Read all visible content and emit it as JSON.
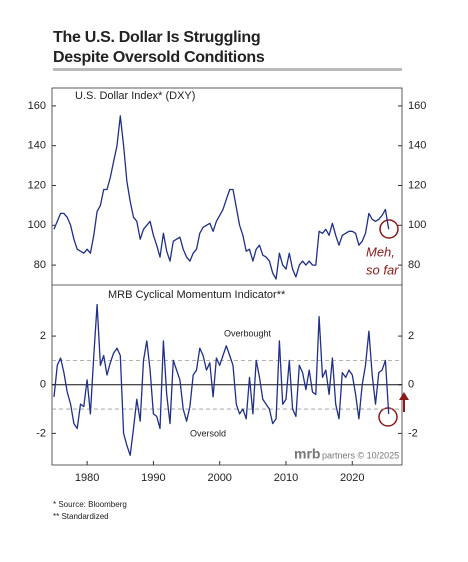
{
  "title": [
    "The U.S. Dollar Is Struggling",
    "Despite Oversold Conditions"
  ],
  "footnotes": [
    "*  Source: Bloomberg",
    "** Standardized"
  ],
  "logo": "mrb",
  "credit": "partners © 10/2025",
  "chart_data": [
    {
      "type": "line",
      "title": "U.S. Dollar Index* (DXY)",
      "color": "#1f2f8a",
      "xlim": [
        1974.7,
        2027.5
      ],
      "ylim": [
        70,
        169
      ],
      "yticks": [
        80,
        100,
        120,
        140,
        160
      ],
      "annotations": [
        "Meh,",
        "so far"
      ],
      "x": [
        1975,
        1975.5,
        1976,
        1976.5,
        1977,
        1977.5,
        1978,
        1978.5,
        1979,
        1979.5,
        1980,
        1980.5,
        1981,
        1981.5,
        1982,
        1982.5,
        1983,
        1983.5,
        1984,
        1984.5,
        1985,
        1985.5,
        1986,
        1986.5,
        1987,
        1987.5,
        1988,
        1988.5,
        1989,
        1989.5,
        1990,
        1990.5,
        1991,
        1991.5,
        1992,
        1992.5,
        1993,
        1993.5,
        1994,
        1994.5,
        1995,
        1995.5,
        1996,
        1996.5,
        1997,
        1997.5,
        1998,
        1998.5,
        1999,
        1999.5,
        2000,
        2000.5,
        2001,
        2001.5,
        2002,
        2002.5,
        2003,
        2003.5,
        2004,
        2004.5,
        2005,
        2005.5,
        2006,
        2006.5,
        2007,
        2007.5,
        2008,
        2008.5,
        2009,
        2009.5,
        2010,
        2010.5,
        2011,
        2011.5,
        2012,
        2012.5,
        2013,
        2013.5,
        2014,
        2014.5,
        2015,
        2015.5,
        2016,
        2016.5,
        2017,
        2017.5,
        2018,
        2018.5,
        2019,
        2019.5,
        2020,
        2020.5,
        2021,
        2021.5,
        2022,
        2022.5,
        2023,
        2023.5,
        2024,
        2024.5,
        2025,
        2025.5
      ],
      "values": [
        98,
        102,
        106,
        106,
        104,
        100,
        93,
        88,
        87,
        86,
        88,
        86,
        95,
        107,
        110,
        118,
        118,
        124,
        132,
        140,
        155,
        140,
        122,
        112,
        104,
        102,
        93,
        98,
        100,
        102,
        95,
        90,
        84,
        96,
        87,
        82,
        92,
        93,
        94,
        88,
        84,
        82,
        86,
        88,
        96,
        99,
        100,
        101,
        97,
        102,
        105,
        108,
        113,
        118,
        118,
        109,
        100,
        95,
        87,
        88,
        82,
        88,
        90,
        85,
        84,
        82,
        76,
        73,
        86,
        80,
        78,
        86,
        78,
        74,
        80,
        82,
        80,
        82,
        80,
        80,
        97,
        96,
        98,
        95,
        101,
        95,
        90,
        95,
        96,
        97,
        97,
        96,
        90,
        92,
        96,
        106,
        103,
        102,
        103,
        105,
        108,
        98
      ]
    },
    {
      "type": "line",
      "title": "MRB Cyclical Momentum Indicator**",
      "color": "#1f2f8a",
      "xlim": [
        1974.7,
        2027.5
      ],
      "ylim": [
        -3.3,
        4.1
      ],
      "yticks": [
        -2,
        0,
        2
      ],
      "xticks": [
        1980,
        1990,
        2000,
        2010,
        2020
      ],
      "ref_lines": [
        {
          "value": 1,
          "dash": true
        },
        {
          "value": 0,
          "dash": false
        },
        {
          "value": -1,
          "dash": true
        }
      ],
      "annotations": [
        "Overbought",
        "Oversold"
      ],
      "x": [
        1975,
        1975.5,
        1976,
        1976.5,
        1977,
        1977.5,
        1978,
        1978.5,
        1979,
        1979.5,
        1980,
        1980.5,
        1981,
        1981.5,
        1982,
        1982.5,
        1983,
        1983.5,
        1984,
        1984.5,
        1985,
        1985.5,
        1986,
        1986.5,
        1987,
        1987.5,
        1988,
        1988.5,
        1989,
        1989.5,
        1990,
        1990.5,
        1991,
        1991.5,
        1992,
        1992.5,
        1993,
        1993.5,
        1994,
        1994.5,
        1995,
        1995.5,
        1996,
        1996.5,
        1997,
        1997.5,
        1998,
        1998.5,
        1999,
        1999.5,
        2000,
        2000.5,
        2001,
        2001.5,
        2002,
        2002.5,
        2003,
        2003.5,
        2004,
        2004.5,
        2005,
        2005.5,
        2006,
        2006.5,
        2007,
        2007.5,
        2008,
        2008.5,
        2009,
        2009.5,
        2010,
        2010.5,
        2011,
        2011.5,
        2012,
        2012.5,
        2013,
        2013.5,
        2014,
        2014.5,
        2015,
        2015.5,
        2016,
        2016.5,
        2017,
        2017.5,
        2018,
        2018.5,
        2019,
        2019.5,
        2020,
        2020.5,
        2021,
        2021.5,
        2022,
        2022.5,
        2023,
        2023.5,
        2024,
        2024.5,
        2025,
        2025.5
      ],
      "values": [
        -0.5,
        0.8,
        1.1,
        0.5,
        -0.3,
        -0.8,
        -1.6,
        -1.8,
        -0.8,
        -0.9,
        0.2,
        -1.2,
        1.2,
        3.3,
        0.8,
        1.2,
        0.4,
        0.9,
        1.3,
        1.5,
        1.2,
        -2.0,
        -2.5,
        -2.9,
        -1.8,
        -0.6,
        -1.5,
        1.0,
        1.8,
        0.6,
        -1.2,
        -1.3,
        -1.8,
        1.8,
        -0.4,
        -1.6,
        1.0,
        0.6,
        0.2,
        -1.0,
        -1.5,
        -0.9,
        0.4,
        0.6,
        1.5,
        1.2,
        0.6,
        0.9,
        -0.5,
        1.1,
        0.8,
        1.2,
        1.6,
        1.2,
        0.8,
        -0.8,
        -1.2,
        -1.0,
        -1.4,
        0.3,
        -1.2,
        1.0,
        0.3,
        -0.6,
        -0.8,
        -1.0,
        -1.6,
        -1.4,
        1.8,
        -0.8,
        -0.6,
        1.0,
        -1.0,
        -1.3,
        0.8,
        0.5,
        -0.2,
        0.6,
        -0.3,
        -0.4,
        2.8,
        0.3,
        0.6,
        -0.4,
        1.1,
        -0.8,
        -1.4,
        0.5,
        0.3,
        0.6,
        0.4,
        -0.4,
        -1.4,
        0.0,
        0.8,
        2.2,
        0.4,
        -0.8,
        0.5,
        0.6,
        1.0,
        -1.2
      ]
    }
  ]
}
